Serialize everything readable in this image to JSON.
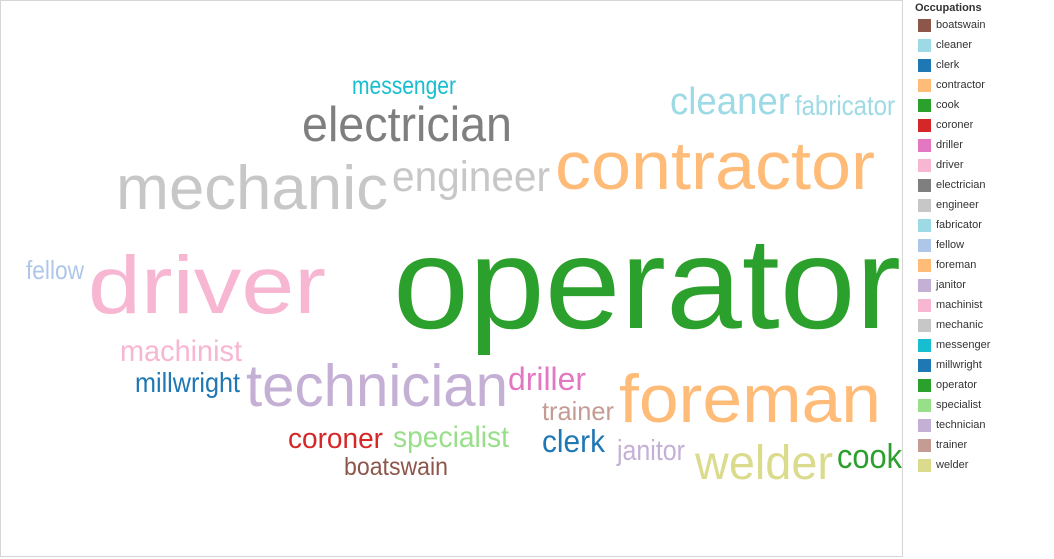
{
  "chart_data": {
    "type": "wordcloud",
    "legend": {
      "title": "Occupations",
      "placement": "right",
      "items": [
        {
          "label": "boatswain",
          "color": "#8c564b"
        },
        {
          "label": "cleaner",
          "color": "#9edae5"
        },
        {
          "label": "clerk",
          "color": "#1f77b4"
        },
        {
          "label": "contractor",
          "color": "#ffbb78"
        },
        {
          "label": "cook",
          "color": "#2ca02c"
        },
        {
          "label": "coroner",
          "color": "#d62728"
        },
        {
          "label": "driller",
          "color": "#e377c2"
        },
        {
          "label": "driver",
          "color": "#f7b6d2"
        },
        {
          "label": "electrician",
          "color": "#7f7f7f"
        },
        {
          "label": "engineer",
          "color": "#c7c7c7"
        },
        {
          "label": "fabricator",
          "color": "#9edae5"
        },
        {
          "label": "fellow",
          "color": "#aec7e8"
        },
        {
          "label": "foreman",
          "color": "#ffbb78"
        },
        {
          "label": "janitor",
          "color": "#c5b0d5"
        },
        {
          "label": "machinist",
          "color": "#f7b6d2"
        },
        {
          "label": "mechanic",
          "color": "#c7c7c7"
        },
        {
          "label": "messenger",
          "color": "#17becf"
        },
        {
          "label": "millwright",
          "color": "#1f77b4"
        },
        {
          "label": "operator",
          "color": "#2ca02c"
        },
        {
          "label": "specialist",
          "color": "#98df8a"
        },
        {
          "label": "technician",
          "color": "#c5b0d5"
        },
        {
          "label": "trainer",
          "color": "#c49c94"
        },
        {
          "label": "welder",
          "color": "#dbdb8d"
        }
      ]
    },
    "words": [
      {
        "text": "operator",
        "weight": 100,
        "color": "#2ca02c"
      },
      {
        "text": "driver",
        "weight": 63,
        "color": "#f7b6d2"
      },
      {
        "text": "contractor",
        "weight": 52,
        "color": "#ffbb78"
      },
      {
        "text": "foreman",
        "weight": 52,
        "color": "#ffbb78"
      },
      {
        "text": "mechanic",
        "weight": 48,
        "color": "#c7c7c7"
      },
      {
        "text": "technician",
        "weight": 46,
        "color": "#c5b0d5"
      },
      {
        "text": "electrician",
        "weight": 38,
        "color": "#7f7f7f"
      },
      {
        "text": "welder",
        "weight": 37,
        "color": "#dbdb8d"
      },
      {
        "text": "engineer",
        "weight": 33,
        "color": "#c7c7c7"
      },
      {
        "text": "cleaner",
        "weight": 29,
        "color": "#9edae5"
      },
      {
        "text": "driller",
        "weight": 25,
        "color": "#e377c2"
      },
      {
        "text": "machinist",
        "weight": 23,
        "color": "#f7b6d2"
      },
      {
        "text": "specialist",
        "weight": 23,
        "color": "#98df8a"
      },
      {
        "text": "clerk",
        "weight": 24,
        "color": "#1f77b4"
      },
      {
        "text": "cook",
        "weight": 26,
        "color": "#2ca02c"
      },
      {
        "text": "fabricator",
        "weight": 21,
        "color": "#9edae5"
      },
      {
        "text": "millwright",
        "weight": 21,
        "color": "#1f77b4"
      },
      {
        "text": "coroner",
        "weight": 22,
        "color": "#d62728"
      },
      {
        "text": "janitor",
        "weight": 22,
        "color": "#c5b0d5"
      },
      {
        "text": "trainer",
        "weight": 20,
        "color": "#c49c94"
      },
      {
        "text": "fellow",
        "weight": 20,
        "color": "#aec7e8"
      },
      {
        "text": "messenger",
        "weight": 19,
        "color": "#17becf"
      },
      {
        "text": "boatswain",
        "weight": 19,
        "color": "#8c564b"
      }
    ]
  }
}
